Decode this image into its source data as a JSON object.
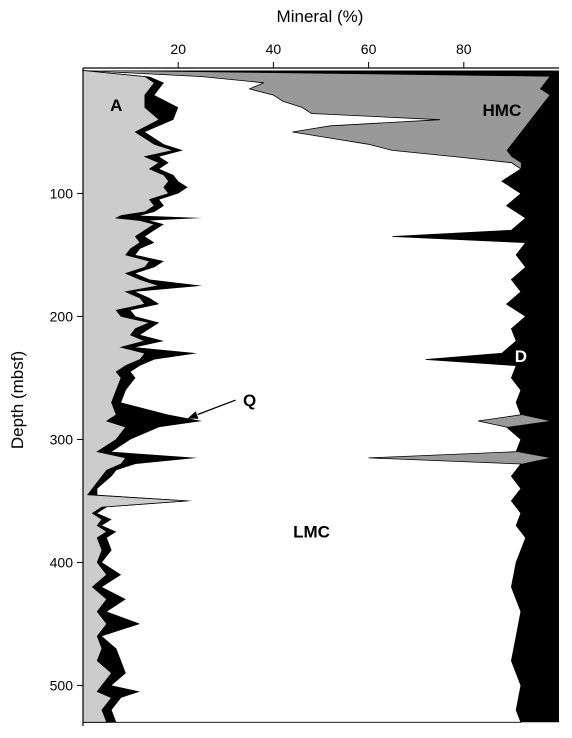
{
  "chart_data": {
    "type": "area",
    "xlabel": "Mineral (%)",
    "ylabel": "Depth (mbsf)",
    "xlim": [
      0,
      100
    ],
    "ylim": [
      -2,
      533
    ],
    "x_ticks": [
      20,
      40,
      60,
      80
    ],
    "y_ticks": [
      100,
      200,
      300,
      400,
      500
    ],
    "y_inverted": true,
    "grid": false,
    "colors": {
      "A": "#cccccc",
      "Q": "#000000",
      "LMC": "#ffffff",
      "HMC": "#999999",
      "D": "#000000"
    },
    "series": [
      {
        "name": "A",
        "depth": [
          0,
          5,
          10,
          20,
          30,
          40,
          50,
          60,
          65,
          70,
          75,
          80,
          85,
          90,
          95,
          100,
          105,
          110,
          115,
          118,
          120,
          122,
          125,
          130,
          135,
          140,
          145,
          150,
          155,
          160,
          165,
          170,
          175,
          180,
          185,
          190,
          195,
          200,
          205,
          210,
          215,
          220,
          225,
          230,
          235,
          240,
          245,
          250,
          260,
          270,
          280,
          285,
          290,
          300,
          305,
          310,
          315,
          320,
          325,
          330,
          340,
          345,
          350,
          355,
          360,
          365,
          370,
          375,
          380,
          390,
          400,
          410,
          420,
          430,
          440,
          450,
          460,
          470,
          480,
          490,
          500,
          505,
          510,
          520,
          530
        ],
        "cum_percent": [
          0,
          13,
          15,
          13,
          13,
          16,
          11,
          15,
          19,
          13,
          16,
          14,
          17,
          18,
          17,
          18,
          14,
          15,
          13,
          8,
          7,
          12,
          15,
          13,
          11,
          12,
          10,
          9,
          14,
          13,
          9,
          12,
          16,
          9,
          12,
          13,
          7,
          8,
          14,
          11,
          10,
          13,
          8,
          13,
          12,
          9,
          7,
          8,
          7,
          6,
          7,
          5,
          9,
          7,
          5,
          3,
          9,
          8,
          5,
          4,
          2,
          1,
          22,
          4,
          2,
          4,
          3,
          5,
          3,
          4,
          3,
          5,
          2,
          5,
          3,
          5,
          3,
          4,
          3,
          6,
          4,
          3,
          6,
          4,
          5
        ]
      },
      {
        "name": "Q",
        "depth": [
          0,
          5,
          10,
          20,
          30,
          40,
          50,
          60,
          65,
          70,
          75,
          80,
          85,
          90,
          95,
          100,
          105,
          110,
          115,
          118,
          120,
          122,
          125,
          130,
          135,
          140,
          145,
          150,
          155,
          160,
          165,
          170,
          175,
          180,
          185,
          190,
          195,
          200,
          205,
          210,
          215,
          220,
          225,
          230,
          235,
          240,
          245,
          250,
          260,
          270,
          280,
          285,
          290,
          300,
          305,
          310,
          315,
          320,
          325,
          330,
          340,
          345,
          350,
          355,
          360,
          365,
          370,
          375,
          380,
          390,
          400,
          410,
          420,
          430,
          440,
          450,
          460,
          470,
          480,
          490,
          500,
          505,
          510,
          520,
          530
        ],
        "cum_percent": [
          0,
          14,
          17,
          15,
          20,
          19,
          13,
          17,
          21,
          16,
          18,
          16,
          19,
          20,
          22,
          20,
          16,
          17,
          15,
          12,
          25,
          14,
          17,
          15,
          13,
          15,
          12,
          11,
          17,
          15,
          11,
          14,
          25,
          11,
          14,
          16,
          10,
          11,
          16,
          14,
          12,
          17,
          11,
          24,
          15,
          12,
          10,
          11,
          9,
          8,
          18,
          25,
          16,
          10,
          8,
          6,
          24,
          11,
          7,
          6,
          3,
          3,
          23,
          5,
          3,
          6,
          4,
          7,
          5,
          6,
          4,
          8,
          4,
          9,
          5,
          12,
          4,
          7,
          8,
          9,
          6,
          12,
          8,
          6,
          7
        ]
      },
      {
        "name": "LMC",
        "depth": [
          0,
          5,
          10,
          15,
          20,
          25,
          30,
          35,
          40,
          45,
          50,
          55,
          60,
          65,
          70,
          75,
          80,
          90,
          100,
          110,
          120,
          130,
          135,
          140,
          150,
          160,
          170,
          180,
          190,
          200,
          210,
          220,
          230,
          235,
          240,
          250,
          260,
          270,
          280,
          285,
          290,
          300,
          310,
          315,
          320,
          330,
          340,
          350,
          360,
          370,
          380,
          400,
          420,
          440,
          460,
          480,
          500,
          520,
          530
        ],
        "cum_percent": [
          0,
          25,
          38,
          35,
          40,
          42,
          46,
          48,
          75,
          52,
          44,
          52,
          60,
          65,
          78,
          90,
          92,
          88,
          92,
          89,
          93,
          90,
          65,
          93,
          91,
          93,
          90,
          92,
          89,
          93,
          90,
          91,
          88,
          72,
          91,
          90,
          92,
          91,
          92,
          83,
          89,
          92,
          91,
          60,
          92,
          90,
          92,
          90,
          92,
          91,
          93,
          91,
          90,
          92,
          91,
          90,
          92,
          91,
          92
        ]
      },
      {
        "name": "HMC",
        "depth": [
          0,
          5,
          10,
          15,
          20,
          25,
          30,
          35,
          40,
          45,
          50,
          55,
          60,
          65,
          70,
          75,
          80,
          90,
          100,
          110,
          120,
          130,
          135,
          140,
          150,
          160,
          170,
          180,
          190,
          200,
          210,
          220,
          230,
          235,
          240,
          250,
          260,
          270,
          280,
          285,
          290,
          300,
          310,
          315,
          320,
          330,
          340,
          350,
          360,
          370,
          380,
          400,
          420,
          440,
          460,
          480,
          500,
          520,
          530
        ],
        "cum_percent": [
          0,
          98,
          97,
          96,
          98,
          97,
          96,
          95,
          94,
          93,
          92,
          91,
          90,
          89,
          90,
          92,
          92,
          88,
          92,
          89,
          93,
          90,
          65,
          93,
          91,
          93,
          90,
          92,
          89,
          93,
          90,
          91,
          88,
          72,
          91,
          90,
          92,
          91,
          92,
          98,
          89,
          92,
          91,
          98,
          92,
          90,
          92,
          90,
          92,
          91,
          93,
          91,
          90,
          92,
          91,
          90,
          92,
          91,
          92
        ]
      },
      {
        "name": "D",
        "depth": [
          0,
          530
        ],
        "cum_percent": [
          100,
          100
        ]
      }
    ],
    "annotations": [
      {
        "text": "A",
        "x": 7,
        "depth": 28
      },
      {
        "text": "HMC",
        "x": 88,
        "depth": 32
      },
      {
        "text": "D",
        "x": 92,
        "depth": 232
      },
      {
        "text": "Q",
        "x": 35,
        "depth": 268,
        "arrow_to": {
          "x": 22,
          "depth": 283
        }
      },
      {
        "text": "LMC",
        "x": 48,
        "depth": 375
      }
    ]
  }
}
